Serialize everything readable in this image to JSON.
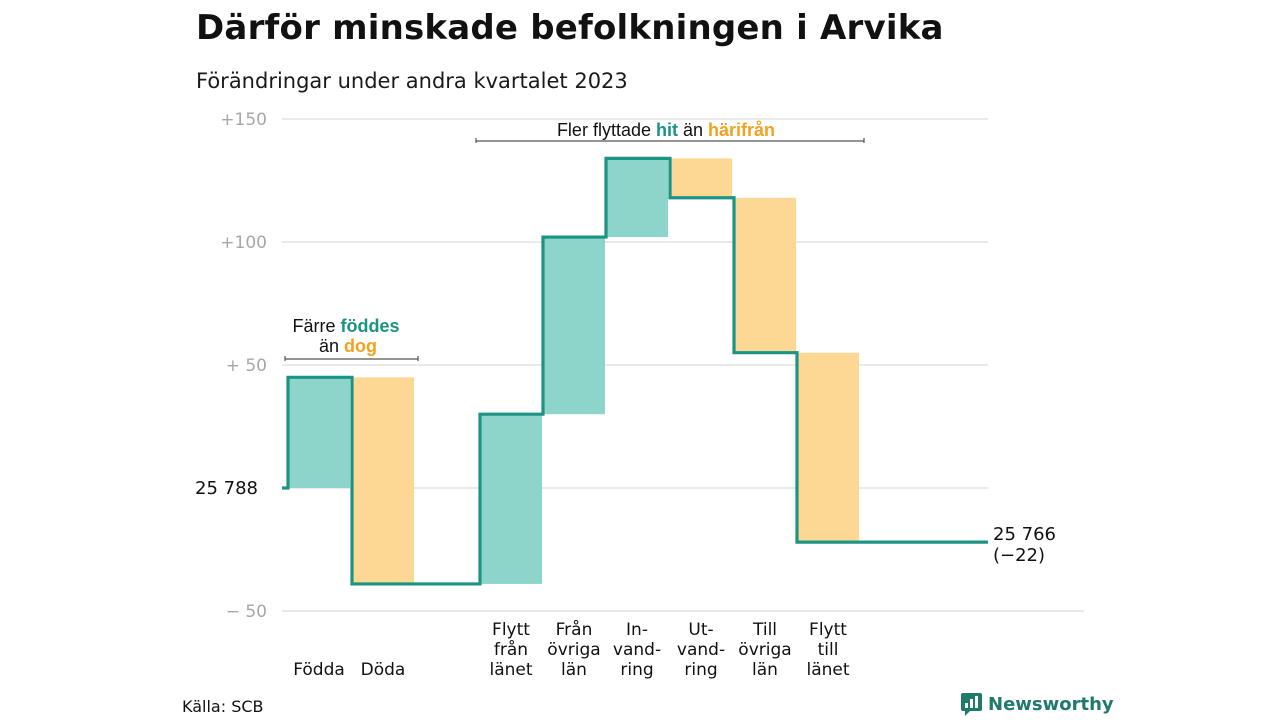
{
  "title": "Därför minskade befolkningen i Arvika",
  "subtitle": "Förändringar under andra kvartalet 2023",
  "source": "Källa: SCB",
  "brand": "Newsworthy",
  "colors": {
    "increase": "#8dd5cb",
    "decrease": "#fcd894",
    "step_line": "#1c9484",
    "grid": "#dddddd",
    "tick": "#a7a7a7",
    "label_teal": "#1c9484",
    "label_orange": "#f4a21e"
  },
  "chart_data": {
    "type": "waterfall",
    "start": {
      "label": "25  788",
      "value": 0
    },
    "end": {
      "label": "25 766",
      "delta_label": "(−22)",
      "value": -22
    },
    "y_ticks": [
      {
        "value": 150,
        "label": "+150"
      },
      {
        "value": 100,
        "label": "+100"
      },
      {
        "value": 50,
        "label": "+  50"
      },
      {
        "value": 0,
        "label": ""
      },
      {
        "value": -50,
        "label": "−  50"
      }
    ],
    "ylim": [
      -50,
      150
    ],
    "steps": [
      {
        "label_lines": [
          "Födda"
        ],
        "from": 0,
        "to": 45,
        "kind": "increase"
      },
      {
        "label_lines": [
          "Döda"
        ],
        "from": 45,
        "to": -39,
        "kind": "decrease"
      },
      {
        "label_lines": [],
        "from": -39,
        "to": -39,
        "kind": "gap"
      },
      {
        "label_lines": [
          "Flytt",
          "från",
          "länet"
        ],
        "from": -39,
        "to": 30,
        "kind": "increase"
      },
      {
        "label_lines": [
          "Från",
          "övriga",
          "län"
        ],
        "from": 30,
        "to": 102,
        "kind": "increase"
      },
      {
        "label_lines": [
          "In-",
          "vand-",
          "ring"
        ],
        "from": 102,
        "to": 134,
        "kind": "increase"
      },
      {
        "label_lines": [
          "Ut-",
          "vand-",
          "ring"
        ],
        "from": 134,
        "to": 118,
        "kind": "decrease"
      },
      {
        "label_lines": [
          "Till",
          "övriga",
          "län"
        ],
        "from": 118,
        "to": 55,
        "kind": "decrease"
      },
      {
        "label_lines": [
          "Flytt",
          "till",
          "länet"
        ],
        "from": 55,
        "to": -22,
        "kind": "decrease"
      }
    ],
    "annotations": [
      {
        "id": "births",
        "line1": [
          {
            "text": "Färre ",
            "tone": "plain"
          },
          {
            "text": "föddes",
            "tone": "teal"
          }
        ],
        "line2": [
          {
            "text": "än ",
            "tone": "plain"
          },
          {
            "text": "dog",
            "tone": "orange"
          }
        ]
      },
      {
        "id": "moves",
        "line1": [
          {
            "text": "Fler flyttade ",
            "tone": "plain"
          },
          {
            "text": "hit",
            "tone": "teal"
          },
          {
            "text": " än ",
            "tone": "plain"
          },
          {
            "text": "härifrån",
            "tone": "orange"
          }
        ]
      }
    ]
  }
}
